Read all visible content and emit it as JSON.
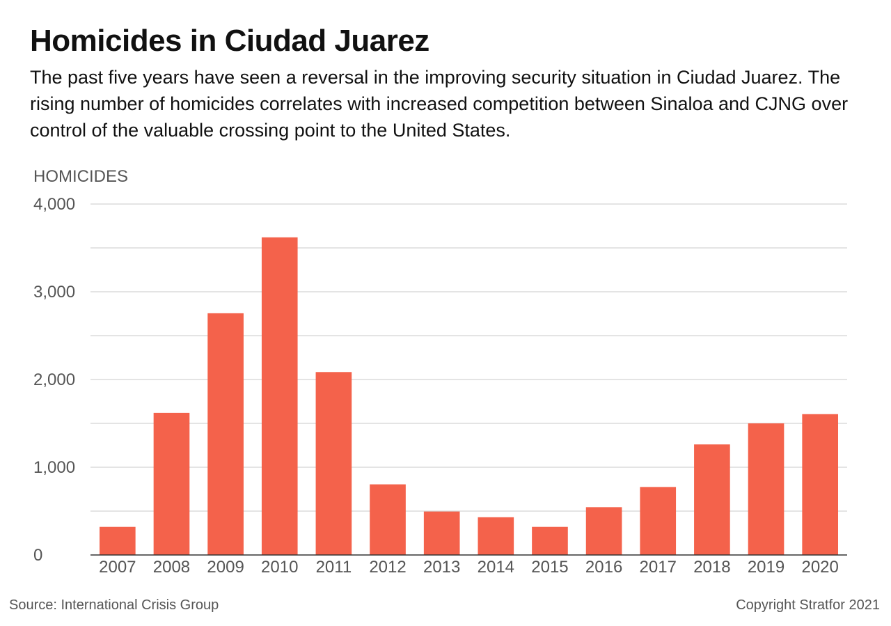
{
  "header": {
    "title": "Homicides in Ciudad Juarez",
    "subtitle": "The past five years have seen a reversal in the improving security situation in Ciudad Juarez. The rising number of homicides correlates with increased competition between Sinaloa and CJNG over control of the valuable crossing point to the United States."
  },
  "chart_data": {
    "type": "bar",
    "ylabel": "HOMICIDES",
    "xlabel": "",
    "ylim": [
      0,
      4000
    ],
    "yticks": [
      0,
      1000,
      2000,
      3000,
      4000
    ],
    "ytick_labels": [
      "0",
      "1,000",
      "2,000",
      "3,000",
      "4,000"
    ],
    "grid": true,
    "categories": [
      "2007",
      "2008",
      "2009",
      "2010",
      "2011",
      "2012",
      "2013",
      "2014",
      "2015",
      "2016",
      "2017",
      "2018",
      "2019",
      "2020"
    ],
    "values": [
      320,
      1620,
      2755,
      3620,
      2085,
      805,
      495,
      430,
      320,
      545,
      775,
      1260,
      1500,
      1605
    ],
    "bar_color": "#f4624b"
  },
  "footer": {
    "source": "Source: International Crisis Group",
    "copyright": "Copyright Stratfor 2021"
  }
}
